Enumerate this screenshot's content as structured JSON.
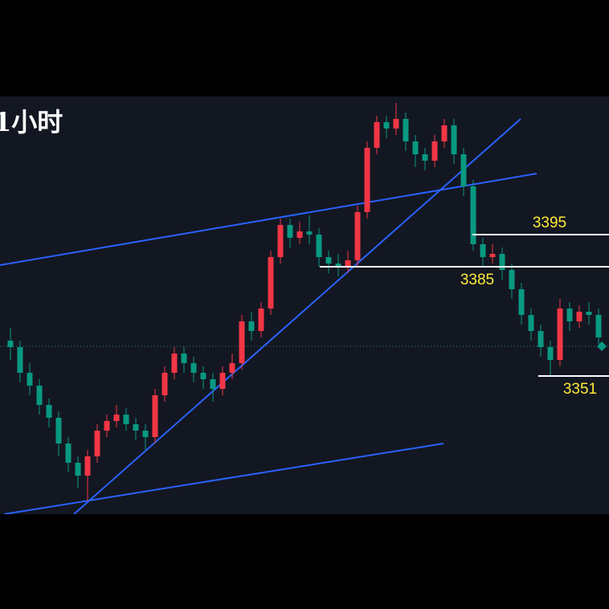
{
  "chart_data": {
    "type": "candlestick",
    "title": "1小时",
    "open": [
      3362,
      3360,
      3352,
      3348,
      3342,
      3338,
      3330,
      3324,
      3320,
      3326,
      3334,
      3337,
      3339,
      3336,
      3334,
      3332,
      3345,
      3352,
      3358,
      3355,
      3352,
      3350,
      3347,
      3352,
      3355,
      3368,
      3365,
      3372,
      3388,
      3398,
      3394,
      3396,
      3395,
      3388,
      3386,
      3385,
      3387,
      3402,
      3422,
      3430,
      3428,
      3431,
      3424,
      3420,
      3418,
      3424,
      3429,
      3420,
      3410,
      3392,
      3388,
      3389,
      3384,
      3378,
      3370,
      3365,
      3360,
      3356,
      3372,
      3368,
      3371,
      3370
    ],
    "high": [
      3366,
      3362,
      3355,
      3350,
      3344,
      3340,
      3332,
      3326,
      3328,
      3336,
      3339,
      3342,
      3341,
      3338,
      3336,
      3347,
      3354,
      3360,
      3360,
      3357,
      3354,
      3352,
      3354,
      3358,
      3370,
      3371,
      3374,
      3390,
      3400,
      3400,
      3399,
      3401,
      3397,
      3390,
      3389,
      3390,
      3404,
      3424,
      3432,
      3432,
      3436,
      3433,
      3426,
      3422,
      3426,
      3431,
      3431,
      3422,
      3412,
      3394,
      3392,
      3391,
      3386,
      3380,
      3372,
      3367,
      3362,
      3375,
      3374,
      3373,
      3374,
      3372
    ],
    "low": [
      3356,
      3349,
      3345,
      3339,
      3335,
      3326,
      3321,
      3316,
      3312,
      3324,
      3332,
      3335,
      3334,
      3331,
      3328,
      3330,
      3343,
      3350,
      3352,
      3349,
      3347,
      3343,
      3345,
      3350,
      3353,
      3362,
      3363,
      3370,
      3386,
      3391,
      3392,
      3392,
      3385,
      3383,
      3382,
      3383,
      3385,
      3400,
      3420,
      3425,
      3426,
      3421,
      3416,
      3415,
      3416,
      3422,
      3417,
      3407,
      3390,
      3385,
      3386,
      3381,
      3375,
      3367,
      3362,
      3357,
      3351,
      3354,
      3365,
      3366,
      3367,
      3361
    ],
    "close": [
      3360,
      3352,
      3348,
      3342,
      3338,
      3330,
      3324,
      3320,
      3326,
      3334,
      3337,
      3339,
      3336,
      3334,
      3332,
      3345,
      3352,
      3358,
      3355,
      3352,
      3350,
      3347,
      3352,
      3355,
      3368,
      3365,
      3372,
      3388,
      3398,
      3394,
      3396,
      3395,
      3388,
      3386,
      3385,
      3387,
      3402,
      3422,
      3430,
      3428,
      3431,
      3424,
      3420,
      3418,
      3424,
      3429,
      3420,
      3410,
      3392,
      3388,
      3389,
      3384,
      3378,
      3370,
      3365,
      3360,
      3356,
      3372,
      3368,
      3371,
      3370,
      3363
    ],
    "up_color": "#f23645",
    "down_color": "#089981",
    "ylim": [
      3308,
      3438
    ],
    "levels": [
      3395,
      3385,
      3351
    ],
    "level_color": "#ffffff",
    "level_label_color": "#ffeb3b"
  }
}
